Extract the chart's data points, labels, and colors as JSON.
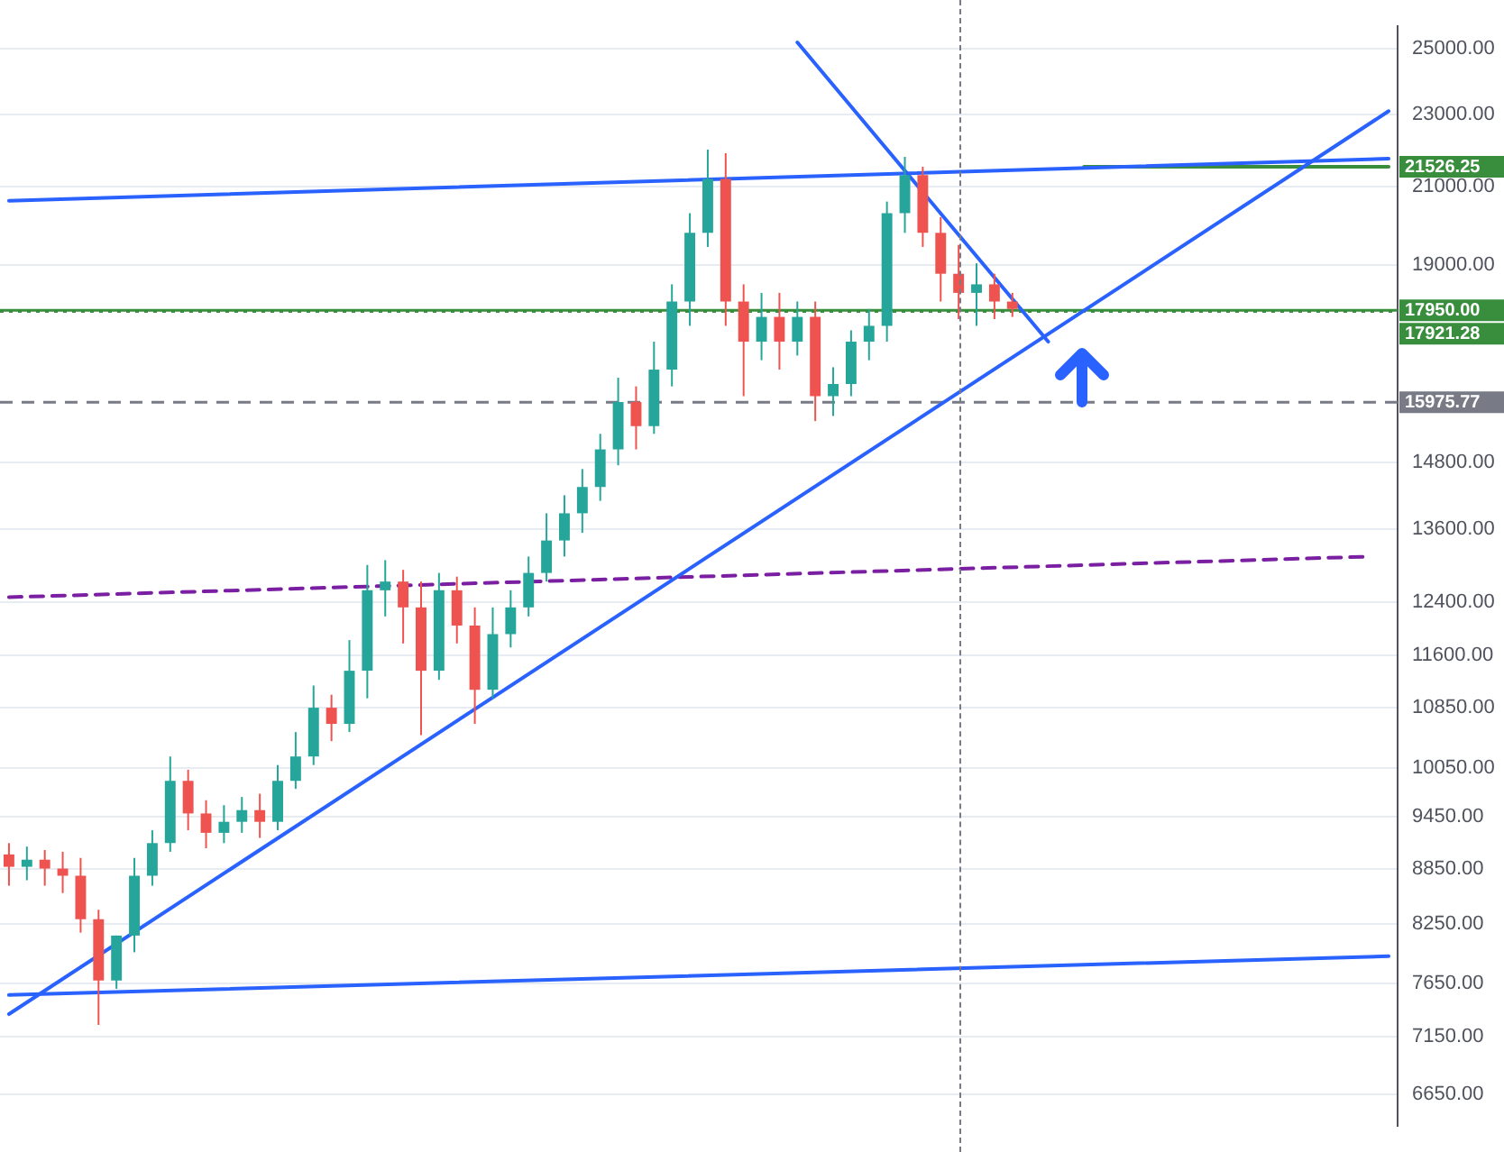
{
  "chart_data": {
    "type": "candlestick",
    "log": true,
    "grid": "y",
    "tick_labels": "y",
    "categories": [
      null,
      null,
      null,
      null,
      null,
      null,
      null,
      null,
      null,
      null,
      null,
      null,
      null,
      null,
      null,
      null,
      null,
      null,
      null,
      null,
      null,
      null,
      null,
      null,
      null,
      null,
      null,
      null,
      null,
      null,
      null,
      null,
      null,
      null,
      null,
      null,
      null,
      null,
      null,
      null,
      null,
      null,
      null,
      null,
      null,
      null,
      null,
      null,
      null,
      null,
      null,
      null,
      null,
      null,
      null,
      null,
      null,
      null,
      null,
      null,
      null,
      null,
      null,
      null,
      null,
      null,
      null,
      null,
      null,
      null,
      null,
      null,
      null,
      null,
      null,
      null,
      null,
      null
    ],
    "ylim": [
      6390,
      25720
    ],
    "yticks": [
      {
        "value": 6650,
        "label": "6650.00"
      },
      {
        "value": 7150,
        "label": "7150.00"
      },
      {
        "value": 7650,
        "label": "7650.00"
      },
      {
        "value": 8250,
        "label": "8250.00"
      },
      {
        "value": 8850,
        "label": "8850.00"
      },
      {
        "value": 9450,
        "label": "9450.00"
      },
      {
        "value": 10050,
        "label": "10050.00"
      },
      {
        "value": 10850,
        "label": "10850.00"
      },
      {
        "value": 11600,
        "label": "11600.00"
      },
      {
        "value": 12400,
        "label": "12400.00"
      },
      {
        "value": 13600,
        "label": "13600.00"
      },
      {
        "value": 14800,
        "label": "14800.00"
      },
      {
        "value": 19000,
        "label": "19000.00"
      },
      {
        "value": 21000,
        "label": "21000.00"
      },
      {
        "value": 23000,
        "label": "23000.00"
      },
      {
        "value": 25000,
        "label": "25000.00"
      }
    ],
    "ohlc": [
      [
        9010,
        9140,
        8660,
        8870
      ],
      [
        8870,
        9100,
        8720,
        8950
      ],
      [
        8950,
        9060,
        8660,
        8850
      ],
      [
        8850,
        9040,
        8580,
        8770
      ],
      [
        8770,
        8970,
        8160,
        8300
      ],
      [
        8300,
        8400,
        7260,
        7680
      ],
      [
        7680,
        8130,
        7600,
        8130
      ],
      [
        8130,
        8970,
        7960,
        8770
      ],
      [
        8770,
        9290,
        8660,
        9140
      ],
      [
        9140,
        10200,
        9040,
        9890
      ],
      [
        9890,
        10030,
        9290,
        9490
      ],
      [
        9490,
        9650,
        9080,
        9260
      ],
      [
        9260,
        9590,
        9140,
        9390
      ],
      [
        9390,
        9690,
        9260,
        9530
      ],
      [
        9530,
        9730,
        9200,
        9390
      ],
      [
        9390,
        10090,
        9290,
        9890
      ],
      [
        9890,
        10520,
        9790,
        10200
      ],
      [
        10200,
        11160,
        10090,
        10850
      ],
      [
        10850,
        11030,
        10400,
        10630
      ],
      [
        10630,
        11820,
        10520,
        11370
      ],
      [
        11370,
        13000,
        10980,
        12590
      ],
      [
        12590,
        13080,
        12180,
        12730
      ],
      [
        12730,
        12920,
        11770,
        12320
      ],
      [
        12320,
        12730,
        10480,
        11370
      ],
      [
        11370,
        12870,
        11240,
        12590
      ],
      [
        12590,
        12810,
        11770,
        12040
      ],
      [
        12040,
        12320,
        10630,
        11100
      ],
      [
        11100,
        12320,
        10980,
        11910
      ],
      [
        11910,
        12590,
        11710,
        12320
      ],
      [
        12320,
        13140,
        12180,
        12870
      ],
      [
        12870,
        13880,
        12730,
        13410
      ],
      [
        13410,
        14200,
        13140,
        13880
      ],
      [
        13880,
        14680,
        13540,
        14350
      ],
      [
        14350,
        15350,
        14100,
        15050
      ],
      [
        15050,
        16480,
        14750,
        15980
      ],
      [
        15980,
        16300,
        15050,
        15500
      ],
      [
        15500,
        17250,
        15350,
        16650
      ],
      [
        16650,
        18550,
        16300,
        18150
      ],
      [
        18150,
        20300,
        17600,
        19800
      ],
      [
        19800,
        22000,
        19450,
        21200
      ],
      [
        21200,
        21900,
        17600,
        18150
      ],
      [
        18150,
        18550,
        16100,
        17250
      ],
      [
        17250,
        18350,
        16850,
        17800
      ],
      [
        17800,
        18350,
        16650,
        17250
      ],
      [
        17250,
        18150,
        16950,
        17800
      ],
      [
        17800,
        18150,
        15600,
        16100
      ],
      [
        16100,
        16700,
        15700,
        16350
      ],
      [
        16350,
        17500,
        16100,
        17250
      ],
      [
        17250,
        17980,
        16850,
        17600
      ],
      [
        17600,
        20600,
        17250,
        20300
      ],
      [
        20300,
        21800,
        19800,
        21300
      ],
      [
        21300,
        21530,
        19450,
        19800
      ],
      [
        19800,
        20200,
        18150,
        18800
      ],
      [
        18800,
        19500,
        17750,
        18350
      ],
      [
        18350,
        19050,
        17600,
        18550
      ],
      [
        18550,
        18800,
        17750,
        18150
      ],
      [
        18150,
        18350,
        17800,
        17980
      ],
      null,
      null,
      null,
      null,
      null,
      null,
      null,
      null,
      null,
      null,
      null,
      null,
      null,
      null,
      null,
      null,
      null,
      null,
      null,
      null,
      null
    ],
    "series": [
      {
        "type": "line",
        "color": "#2962ff",
        "values": [
          20620,
          null,
          null,
          null,
          null,
          null,
          null,
          null,
          null,
          null,
          null,
          null,
          null,
          null,
          null,
          null,
          null,
          null,
          null,
          null,
          null,
          null,
          null,
          null,
          null,
          null,
          null,
          null,
          null,
          null,
          null,
          null,
          null,
          null,
          null,
          null,
          null,
          null,
          null,
          null,
          null,
          null,
          null,
          null,
          null,
          null,
          null,
          null,
          null,
          null,
          null,
          null,
          null,
          null,
          null,
          null,
          null,
          null,
          null,
          null,
          null,
          null,
          null,
          null,
          null,
          null,
          null,
          null,
          null,
          null,
          null,
          null,
          null,
          null,
          null,
          null,
          null,
          21750
        ]
      },
      {
        "type": "line",
        "color": "#2962ff",
        "values": [
          null,
          null,
          null,
          null,
          null,
          null,
          null,
          null,
          null,
          null,
          null,
          null,
          null,
          null,
          null,
          null,
          null,
          null,
          null,
          null,
          null,
          null,
          null,
          null,
          null,
          null,
          null,
          null,
          null,
          null,
          null,
          null,
          null,
          null,
          null,
          null,
          null,
          null,
          null,
          null,
          null,
          null,
          null,
          null,
          25200,
          null,
          null,
          null,
          null,
          null,
          null,
          null,
          null,
          null,
          null,
          null,
          null,
          null,
          17250,
          null,
          null,
          null,
          null,
          null,
          null,
          null,
          null,
          null,
          null,
          null,
          null,
          null,
          null,
          null,
          null,
          null,
          null,
          null
        ]
      },
      {
        "type": "line",
        "color": "#2962ff",
        "values": [
          7360,
          null,
          null,
          null,
          null,
          null,
          null,
          null,
          null,
          null,
          null,
          null,
          null,
          null,
          null,
          null,
          null,
          null,
          null,
          null,
          null,
          null,
          null,
          null,
          null,
          null,
          null,
          null,
          null,
          null,
          null,
          null,
          null,
          null,
          null,
          null,
          null,
          null,
          null,
          null,
          null,
          null,
          null,
          null,
          null,
          null,
          null,
          null,
          null,
          null,
          null,
          null,
          null,
          null,
          null,
          null,
          null,
          null,
          null,
          null,
          null,
          null,
          null,
          null,
          null,
          null,
          null,
          null,
          null,
          null,
          null,
          null,
          null,
          null,
          null,
          null,
          null,
          23100
        ]
      },
      {
        "type": "line",
        "color": "#2962ff",
        "values": [
          7540,
          null,
          null,
          null,
          null,
          null,
          null,
          null,
          null,
          null,
          null,
          null,
          null,
          null,
          null,
          null,
          null,
          null,
          null,
          null,
          null,
          null,
          null,
          null,
          null,
          null,
          null,
          null,
          null,
          null,
          null,
          null,
          null,
          null,
          null,
          null,
          null,
          null,
          null,
          null,
          null,
          null,
          null,
          null,
          null,
          null,
          null,
          null,
          null,
          null,
          null,
          null,
          null,
          null,
          null,
          null,
          null,
          null,
          null,
          null,
          null,
          null,
          null,
          null,
          null,
          null,
          null,
          null,
          null,
          null,
          null,
          null,
          null,
          null,
          null,
          null,
          null,
          7920
        ]
      },
      {
        "type": "line",
        "color": "#7b1fa2",
        "line_style": "dashed",
        "values": [
          12480,
          null,
          null,
          null,
          null,
          null,
          null,
          null,
          null,
          null,
          null,
          null,
          null,
          null,
          null,
          null,
          null,
          null,
          null,
          null,
          null,
          null,
          null,
          null,
          null,
          null,
          null,
          null,
          null,
          null,
          null,
          null,
          null,
          null,
          null,
          null,
          null,
          null,
          null,
          null,
          null,
          null,
          null,
          null,
          null,
          null,
          null,
          null,
          null,
          null,
          null,
          null,
          null,
          null,
          null,
          null,
          null,
          null,
          null,
          null,
          null,
          null,
          null,
          null,
          null,
          null,
          null,
          null,
          null,
          null,
          null,
          null,
          null,
          null,
          null,
          null,
          13140,
          null
        ]
      },
      {
        "type": "line",
        "name": "21526.25",
        "color": "#388e3c",
        "values": [
          null,
          null,
          null,
          null,
          null,
          null,
          null,
          null,
          null,
          null,
          null,
          null,
          null,
          null,
          null,
          null,
          null,
          null,
          null,
          null,
          null,
          null,
          null,
          null,
          null,
          null,
          null,
          null,
          null,
          null,
          null,
          null,
          null,
          null,
          null,
          null,
          null,
          null,
          null,
          null,
          null,
          null,
          null,
          null,
          null,
          null,
          null,
          null,
          null,
          null,
          null,
          null,
          null,
          null,
          null,
          null,
          null,
          null,
          null,
          null,
          21526.25,
          null,
          null,
          null,
          null,
          null,
          null,
          null,
          null,
          null,
          null,
          null,
          null,
          null,
          null,
          null,
          null,
          21526.25
        ]
      }
    ],
    "ref_lines": [
      {
        "axis": "y",
        "value": 17950,
        "label": "17950.00",
        "color": "#388e3c"
      },
      {
        "axis": "y",
        "value": 17921.28,
        "label": "17921.28",
        "color": "#388e3c",
        "line_style": "dotted"
      },
      {
        "axis": "y",
        "value": 15975.77,
        "label": "15975.77",
        "color": "#787b86",
        "line_style": "dashed"
      }
    ]
  }
}
